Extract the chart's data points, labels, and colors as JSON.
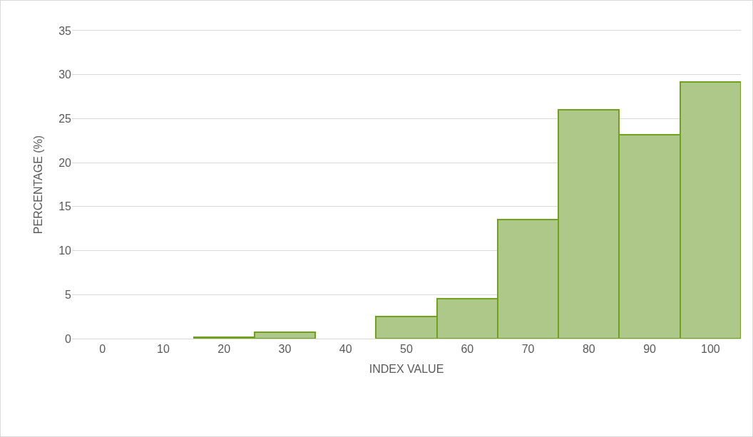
{
  "chart_data": {
    "type": "bar",
    "xlabel": "INDEX VALUE",
    "ylabel": "PERCENTAGE (%)",
    "categories": [
      "0",
      "10",
      "20",
      "30",
      "40",
      "50",
      "60",
      "70",
      "80",
      "90",
      "100"
    ],
    "values": [
      0,
      0,
      0.2,
      0.7,
      0,
      2.5,
      4.5,
      13.5,
      26,
      23.2,
      29.2
    ],
    "color": "#aec88a",
    "ylim": [
      0,
      35
    ],
    "yticks": [
      0,
      5,
      10,
      15,
      20,
      25,
      30,
      35
    ],
    "grid": "y",
    "legend": false
  }
}
